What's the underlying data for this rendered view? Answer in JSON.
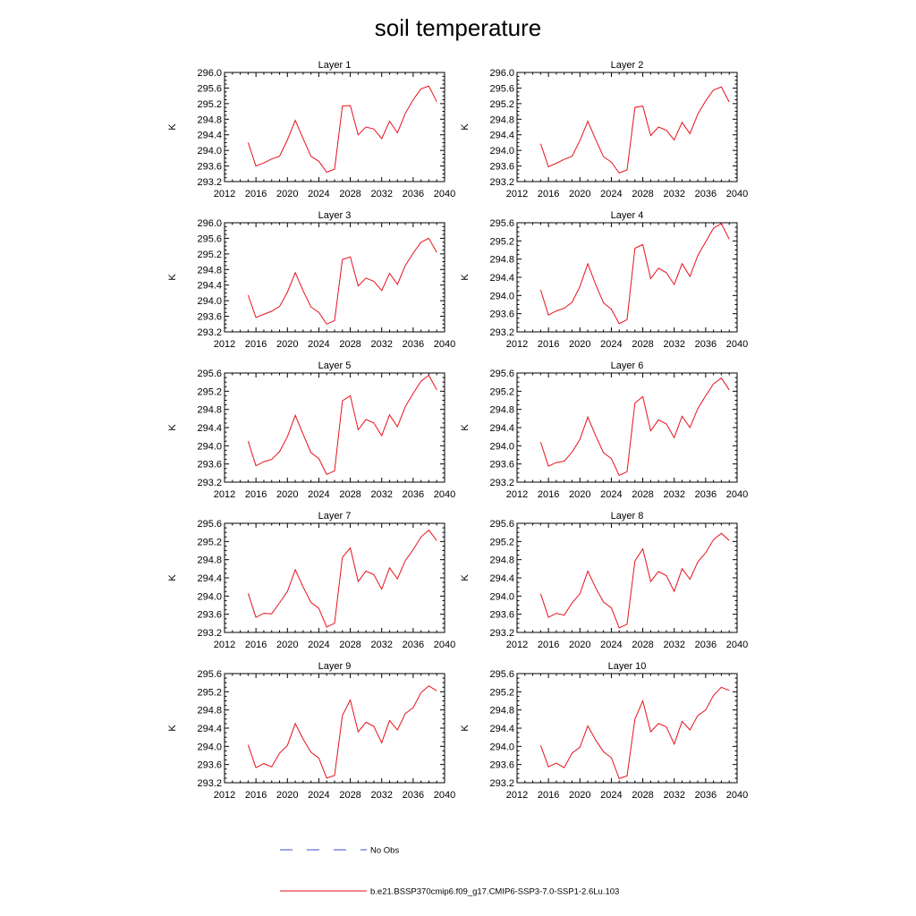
{
  "figure": {
    "title": "soil temperature",
    "colors": {
      "series": "#e8111b",
      "obs": "#3b4fd0",
      "axis": "#000000"
    }
  },
  "legend": {
    "obs_label": "No Obs",
    "model_label": "b.e21.BSSP370cmip6.f09_g17.CMIP6-SSP3-7.0-SSP1-2.6Lu.103"
  },
  "chart_data": [
    {
      "type": "line",
      "title": "Layer 1",
      "ylabel": "K",
      "xlabel": "",
      "xlim": [
        2012,
        2040
      ],
      "ylim": [
        293.2,
        296.0
      ],
      "xticks": [
        "2012",
        "2016",
        "2020",
        "2024",
        "2028",
        "2032",
        "2036",
        "2040"
      ],
      "yticks": [
        "293.2",
        "293.6",
        "294.0",
        "294.4",
        "294.8",
        "295.2",
        "295.6",
        "296.0"
      ],
      "series": [
        {
          "x": [
            2015,
            2016,
            2017,
            2018,
            2019,
            2020,
            2021,
            2022,
            2023,
            2024,
            2025,
            2026,
            2027,
            2028,
            2029,
            2030,
            2031,
            2032,
            2033,
            2034,
            2035,
            2036,
            2037,
            2038,
            2039
          ],
          "values": [
            294.2,
            293.6,
            293.68,
            293.78,
            293.85,
            294.27,
            294.77,
            294.3,
            293.85,
            293.72,
            293.44,
            293.52,
            295.14,
            295.15,
            294.4,
            294.6,
            294.55,
            294.3,
            294.75,
            294.45,
            294.95,
            295.3,
            295.58,
            295.65,
            295.25
          ]
        }
      ]
    },
    {
      "type": "line",
      "title": "Layer 2",
      "ylabel": "K",
      "xlabel": "",
      "xlim": [
        2012,
        2040
      ],
      "ylim": [
        293.2,
        296.0
      ],
      "xticks": [
        "2012",
        "2016",
        "2020",
        "2024",
        "2028",
        "2032",
        "2036",
        "2040"
      ],
      "yticks": [
        "293.2",
        "293.6",
        "294.0",
        "294.4",
        "294.8",
        "295.2",
        "295.6",
        "296.0"
      ],
      "series": [
        {
          "x": [
            2015,
            2016,
            2017,
            2018,
            2019,
            2020,
            2021,
            2022,
            2023,
            2024,
            2025,
            2026,
            2027,
            2028,
            2029,
            2030,
            2031,
            2032,
            2033,
            2034,
            2035,
            2036,
            2037,
            2038,
            2039
          ],
          "values": [
            294.17,
            293.58,
            293.67,
            293.77,
            293.85,
            294.25,
            294.75,
            294.28,
            293.84,
            293.7,
            293.42,
            293.5,
            295.1,
            295.14,
            294.38,
            294.6,
            294.52,
            294.27,
            294.72,
            294.43,
            294.93,
            295.27,
            295.55,
            295.63,
            295.24
          ]
        }
      ]
    },
    {
      "type": "line",
      "title": "Layer 3",
      "ylabel": "K",
      "xlabel": "",
      "xlim": [
        2012,
        2040
      ],
      "ylim": [
        293.2,
        296.0
      ],
      "xticks": [
        "2012",
        "2016",
        "2020",
        "2024",
        "2028",
        "2032",
        "2036",
        "2040"
      ],
      "yticks": [
        "293.2",
        "293.6",
        "294.0",
        "294.4",
        "294.8",
        "295.2",
        "295.6",
        "296.0"
      ],
      "series": [
        {
          "x": [
            2015,
            2016,
            2017,
            2018,
            2019,
            2020,
            2021,
            2022,
            2023,
            2024,
            2025,
            2026,
            2027,
            2028,
            2029,
            2030,
            2031,
            2032,
            2033,
            2034,
            2035,
            2036,
            2037,
            2038,
            2039
          ],
          "values": [
            294.14,
            293.57,
            293.65,
            293.73,
            293.85,
            294.22,
            294.72,
            294.25,
            293.84,
            293.7,
            293.4,
            293.49,
            295.06,
            295.12,
            294.38,
            294.58,
            294.5,
            294.26,
            294.7,
            294.42,
            294.9,
            295.22,
            295.5,
            295.6,
            295.24
          ]
        }
      ]
    },
    {
      "type": "line",
      "title": "Layer 4",
      "ylabel": "K",
      "xlabel": "",
      "xlim": [
        2012,
        2040
      ],
      "ylim": [
        293.2,
        295.6
      ],
      "xticks": [
        "2012",
        "2016",
        "2020",
        "2024",
        "2028",
        "2032",
        "2036",
        "2040"
      ],
      "yticks": [
        "293.2",
        "293.6",
        "294.0",
        "294.4",
        "294.8",
        "295.2",
        "295.6"
      ],
      "series": [
        {
          "x": [
            2015,
            2016,
            2017,
            2018,
            2019,
            2020,
            2021,
            2022,
            2023,
            2024,
            2025,
            2026,
            2027,
            2028,
            2029,
            2030,
            2031,
            2032,
            2033,
            2034,
            2035,
            2036,
            2037,
            2038,
            2039
          ],
          "values": [
            294.12,
            293.57,
            293.66,
            293.72,
            293.85,
            294.2,
            294.7,
            294.24,
            293.84,
            293.7,
            293.38,
            293.47,
            295.04,
            295.12,
            294.37,
            294.6,
            294.5,
            294.24,
            294.7,
            294.42,
            294.88,
            295.18,
            295.48,
            295.58,
            295.24
          ]
        }
      ]
    },
    {
      "type": "line",
      "title": "Layer 5",
      "ylabel": "K",
      "xlabel": "",
      "xlim": [
        2012,
        2040
      ],
      "ylim": [
        293.2,
        295.6
      ],
      "xticks": [
        "2012",
        "2016",
        "2020",
        "2024",
        "2028",
        "2032",
        "2036",
        "2040"
      ],
      "yticks": [
        "293.2",
        "293.6",
        "294.0",
        "294.4",
        "294.8",
        "295.2",
        "295.6"
      ],
      "series": [
        {
          "x": [
            2015,
            2016,
            2017,
            2018,
            2019,
            2020,
            2021,
            2022,
            2023,
            2024,
            2025,
            2026,
            2027,
            2028,
            2029,
            2030,
            2031,
            2032,
            2033,
            2034,
            2035,
            2036,
            2037,
            2038,
            2039
          ],
          "values": [
            294.1,
            293.56,
            293.65,
            293.7,
            293.87,
            294.2,
            294.67,
            294.25,
            293.85,
            293.72,
            293.37,
            293.45,
            294.99,
            295.1,
            294.35,
            294.58,
            294.5,
            294.22,
            294.68,
            294.42,
            294.86,
            295.15,
            295.42,
            295.55,
            295.23
          ]
        }
      ]
    },
    {
      "type": "line",
      "title": "Layer 6",
      "ylabel": "K",
      "xlabel": "",
      "xlim": [
        2012,
        2040
      ],
      "ylim": [
        293.2,
        295.6
      ],
      "xticks": [
        "2012",
        "2016",
        "2020",
        "2024",
        "2028",
        "2032",
        "2036",
        "2040"
      ],
      "yticks": [
        "293.2",
        "293.6",
        "294.0",
        "294.4",
        "294.8",
        "295.2",
        "295.6"
      ],
      "series": [
        {
          "x": [
            2015,
            2016,
            2017,
            2018,
            2019,
            2020,
            2021,
            2022,
            2023,
            2024,
            2025,
            2026,
            2027,
            2028,
            2029,
            2030,
            2031,
            2032,
            2033,
            2034,
            2035,
            2036,
            2037,
            2038,
            2039
          ],
          "values": [
            294.08,
            293.55,
            293.63,
            293.66,
            293.86,
            294.14,
            294.63,
            294.22,
            293.85,
            293.72,
            293.35,
            293.43,
            294.94,
            295.08,
            294.33,
            294.57,
            294.48,
            294.18,
            294.65,
            294.4,
            294.82,
            295.1,
            295.36,
            295.49,
            295.23
          ]
        }
      ]
    },
    {
      "type": "line",
      "title": "Layer 7",
      "ylabel": "K",
      "xlabel": "",
      "xlim": [
        2012,
        2040
      ],
      "ylim": [
        293.2,
        295.6
      ],
      "xticks": [
        "2012",
        "2016",
        "2020",
        "2024",
        "2028",
        "2032",
        "2036",
        "2040"
      ],
      "yticks": [
        "293.2",
        "293.6",
        "294.0",
        "294.4",
        "294.8",
        "295.2",
        "295.6"
      ],
      "series": [
        {
          "x": [
            2015,
            2016,
            2017,
            2018,
            2019,
            2020,
            2021,
            2022,
            2023,
            2024,
            2025,
            2026,
            2027,
            2028,
            2029,
            2030,
            2031,
            2032,
            2033,
            2034,
            2035,
            2036,
            2037,
            2038,
            2039
          ],
          "values": [
            294.06,
            293.53,
            293.62,
            293.61,
            293.85,
            294.1,
            294.58,
            294.2,
            293.86,
            293.73,
            293.32,
            293.4,
            294.85,
            295.06,
            294.32,
            294.55,
            294.47,
            294.15,
            294.62,
            294.38,
            294.78,
            295.02,
            295.3,
            295.45,
            295.22
          ]
        }
      ]
    },
    {
      "type": "line",
      "title": "Layer 8",
      "ylabel": "K",
      "xlabel": "",
      "xlim": [
        2012,
        2040
      ],
      "ylim": [
        293.2,
        295.6
      ],
      "xticks": [
        "2012",
        "2016",
        "2020",
        "2024",
        "2028",
        "2032",
        "2036",
        "2040"
      ],
      "yticks": [
        "293.2",
        "293.6",
        "294.0",
        "294.4",
        "294.8",
        "295.2",
        "295.6"
      ],
      "series": [
        {
          "x": [
            2015,
            2016,
            2017,
            2018,
            2019,
            2020,
            2021,
            2022,
            2023,
            2024,
            2025,
            2026,
            2027,
            2028,
            2029,
            2030,
            2031,
            2032,
            2033,
            2034,
            2035,
            2036,
            2037,
            2038,
            2039
          ],
          "values": [
            294.05,
            293.53,
            293.62,
            293.58,
            293.85,
            294.05,
            294.55,
            294.18,
            293.87,
            293.74,
            293.3,
            293.38,
            294.77,
            295.04,
            294.32,
            294.54,
            294.45,
            294.1,
            294.6,
            294.37,
            294.75,
            294.95,
            295.24,
            295.38,
            295.22
          ]
        }
      ]
    },
    {
      "type": "line",
      "title": "Layer 9",
      "ylabel": "K",
      "xlabel": "",
      "xlim": [
        2012,
        2040
      ],
      "ylim": [
        293.2,
        295.6
      ],
      "xticks": [
        "2012",
        "2016",
        "2020",
        "2024",
        "2028",
        "2032",
        "2036",
        "2040"
      ],
      "yticks": [
        "293.2",
        "293.6",
        "294.0",
        "294.4",
        "294.8",
        "295.2",
        "295.6"
      ],
      "series": [
        {
          "x": [
            2015,
            2016,
            2017,
            2018,
            2019,
            2020,
            2021,
            2022,
            2023,
            2024,
            2025,
            2026,
            2027,
            2028,
            2029,
            2030,
            2031,
            2032,
            2033,
            2034,
            2035,
            2036,
            2037,
            2038,
            2039
          ],
          "values": [
            294.03,
            293.53,
            293.62,
            293.55,
            293.85,
            294.02,
            294.5,
            294.16,
            293.87,
            293.74,
            293.3,
            293.36,
            294.68,
            295.02,
            294.32,
            294.53,
            294.44,
            294.08,
            294.57,
            294.36,
            294.72,
            294.85,
            295.18,
            295.33,
            295.22
          ]
        }
      ]
    },
    {
      "type": "line",
      "title": "Layer 10",
      "ylabel": "K",
      "xlabel": "",
      "xlim": [
        2012,
        2040
      ],
      "ylim": [
        293.2,
        295.6
      ],
      "xticks": [
        "2012",
        "2016",
        "2020",
        "2024",
        "2028",
        "2032",
        "2036",
        "2040"
      ],
      "yticks": [
        "293.2",
        "293.6",
        "294.0",
        "294.4",
        "294.8",
        "295.2",
        "295.6"
      ],
      "series": [
        {
          "x": [
            2015,
            2016,
            2017,
            2018,
            2019,
            2020,
            2021,
            2022,
            2023,
            2024,
            2025,
            2026,
            2027,
            2028,
            2029,
            2030,
            2031,
            2032,
            2033,
            2034,
            2035,
            2036,
            2037,
            2038,
            2039
          ],
          "values": [
            294.02,
            293.55,
            293.63,
            293.53,
            293.85,
            293.98,
            294.45,
            294.14,
            293.88,
            293.75,
            293.29,
            293.35,
            294.6,
            295.0,
            294.32,
            294.5,
            294.43,
            294.05,
            294.55,
            294.36,
            294.68,
            294.8,
            295.12,
            295.3,
            295.23
          ]
        }
      ]
    }
  ]
}
